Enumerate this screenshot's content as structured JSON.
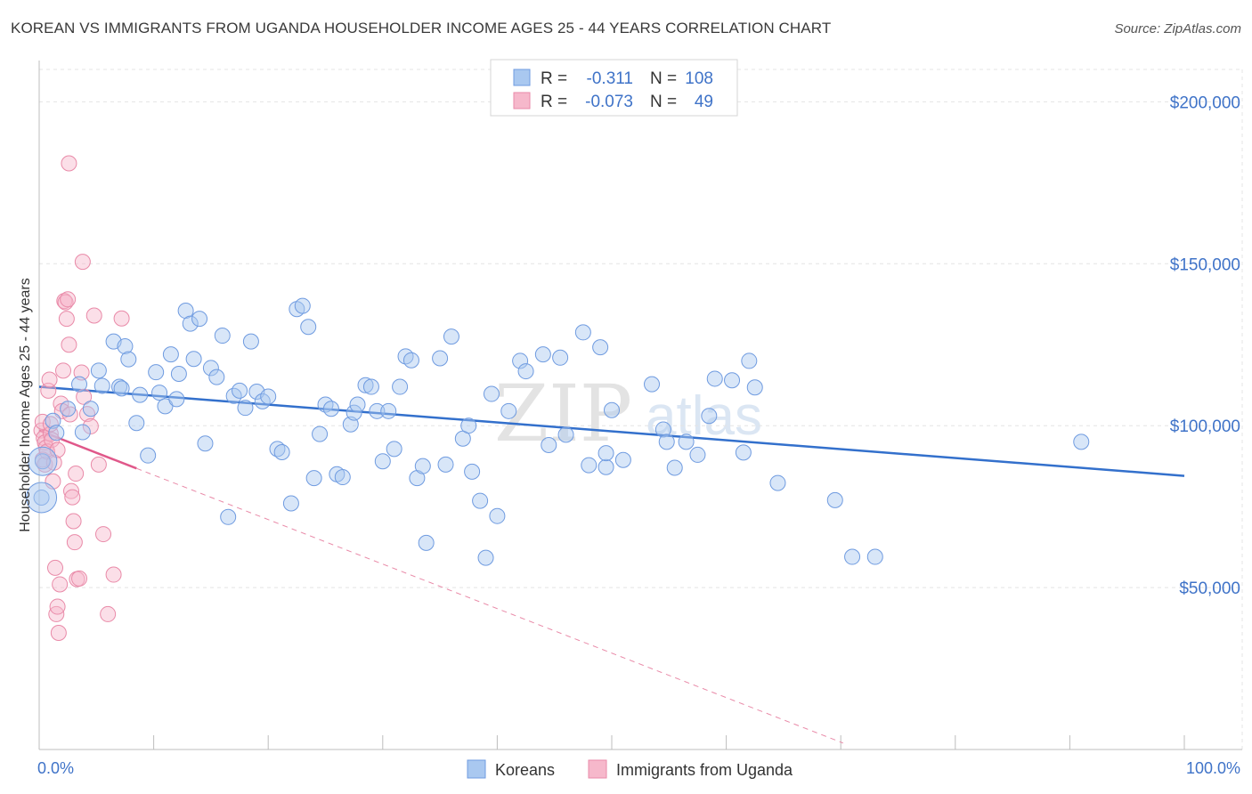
{
  "title": "KOREAN VS IMMIGRANTS FROM UGANDA HOUSEHOLDER INCOME AGES 25 - 44 YEARS CORRELATION CHART",
  "source": "Source: ZipAtlas.com",
  "watermark": {
    "zip": "ZIP",
    "atlas": "atlas"
  },
  "colors": {
    "korean_fill": "#a9c8f0",
    "korean_stroke": "#6f9be0",
    "korean_line": "#3370cc",
    "uganda_fill": "#f6b8cb",
    "uganda_stroke": "#e98aa8",
    "uganda_line": "#e0588a",
    "tick_text": "#3f73c8",
    "grid": "#e4e4e4"
  },
  "legend": {
    "rows": [
      {
        "r_label": "R =",
        "r_value": "-0.311",
        "n_label": "N =",
        "n_value": "108"
      },
      {
        "r_label": "R =",
        "r_value": "-0.073",
        "n_label": "N =",
        "n_value": "49"
      }
    ]
  },
  "chart_data": {
    "type": "scatter",
    "title": "KOREAN VS IMMIGRANTS FROM UGANDA HOUSEHOLDER INCOME AGES 25 - 44 YEARS CORRELATION CHART",
    "xlabel": "",
    "ylabel": "Householder Income Ages 25 - 44 years",
    "xlim": [
      0,
      100
    ],
    "ylim": [
      0,
      210000
    ],
    "x_tick_labels": [
      "0.0%",
      "100.0%"
    ],
    "y_ticks": [
      50000,
      100000,
      150000,
      200000
    ],
    "y_tick_labels": [
      "$50,000",
      "$100,000",
      "$150,000",
      "$200,000"
    ],
    "grid": true,
    "legend_position": "top-center",
    "series": [
      {
        "name": "Koreans",
        "r": -0.311,
        "n": 108,
        "trend": {
          "x0": 0,
          "y0": 112000,
          "x1": 100,
          "y1": 84500
        },
        "points": [
          [
            0.3,
            89000
          ],
          [
            0.2,
            77800
          ],
          [
            1.2,
            101500
          ],
          [
            1.5,
            97800
          ],
          [
            2.5,
            105200
          ],
          [
            3.5,
            112800
          ],
          [
            3.8,
            98000
          ],
          [
            4.5,
            105200
          ],
          [
            5.2,
            117000
          ],
          [
            5.5,
            112300
          ],
          [
            6.5,
            126000
          ],
          [
            7.0,
            112000
          ],
          [
            7.2,
            111500
          ],
          [
            7.5,
            124500
          ],
          [
            7.8,
            120500
          ],
          [
            8.5,
            100800
          ],
          [
            8.8,
            109500
          ],
          [
            9.5,
            90800
          ],
          [
            10.2,
            116500
          ],
          [
            10.5,
            110200
          ],
          [
            11.0,
            106000
          ],
          [
            11.5,
            122000
          ],
          [
            12.0,
            108200
          ],
          [
            12.2,
            116000
          ],
          [
            12.8,
            135500
          ],
          [
            13.2,
            131500
          ],
          [
            13.5,
            120600
          ],
          [
            14.0,
            133000
          ],
          [
            14.5,
            94500
          ],
          [
            15.0,
            117800
          ],
          [
            15.5,
            115000
          ],
          [
            16.0,
            127800
          ],
          [
            16.5,
            71800
          ],
          [
            17.0,
            109200
          ],
          [
            17.5,
            110800
          ],
          [
            18.0,
            105500
          ],
          [
            18.5,
            126000
          ],
          [
            19.0,
            110500
          ],
          [
            19.5,
            107500
          ],
          [
            20.0,
            109000
          ],
          [
            20.8,
            92800
          ],
          [
            21.2,
            91800
          ],
          [
            22.0,
            76000
          ],
          [
            22.5,
            136000
          ],
          [
            23.0,
            137000
          ],
          [
            23.5,
            130500
          ],
          [
            24.0,
            83800
          ],
          [
            24.5,
            97400
          ],
          [
            25.0,
            106500
          ],
          [
            25.5,
            105200
          ],
          [
            26.0,
            85000
          ],
          [
            26.5,
            84100
          ],
          [
            27.2,
            100400
          ],
          [
            27.5,
            104000
          ],
          [
            27.8,
            106500
          ],
          [
            28.5,
            112500
          ],
          [
            29.0,
            112000
          ],
          [
            29.5,
            104500
          ],
          [
            30.0,
            89000
          ],
          [
            30.5,
            104500
          ],
          [
            31.0,
            92800
          ],
          [
            31.5,
            112000
          ],
          [
            32.0,
            121400
          ],
          [
            32.5,
            120200
          ],
          [
            33.0,
            83800
          ],
          [
            33.5,
            87500
          ],
          [
            33.8,
            63800
          ],
          [
            35.0,
            120800
          ],
          [
            35.5,
            88000
          ],
          [
            36.0,
            127500
          ],
          [
            37.0,
            96000
          ],
          [
            37.5,
            100000
          ],
          [
            37.8,
            85800
          ],
          [
            38.5,
            76800
          ],
          [
            39.0,
            59200
          ],
          [
            39.5,
            109800
          ],
          [
            40.0,
            72100
          ],
          [
            41.0,
            104500
          ],
          [
            42.0,
            120000
          ],
          [
            42.5,
            116800
          ],
          [
            44.0,
            122000
          ],
          [
            44.5,
            94000
          ],
          [
            45.5,
            121000
          ],
          [
            46.0,
            97200
          ],
          [
            47.5,
            128800
          ],
          [
            48.0,
            87800
          ],
          [
            49.0,
            124200
          ],
          [
            49.5,
            87200
          ],
          [
            50.0,
            104800
          ],
          [
            51.0,
            89400
          ],
          [
            53.5,
            112800
          ],
          [
            54.5,
            98800
          ],
          [
            54.8,
            95000
          ],
          [
            55.5,
            87000
          ],
          [
            56.5,
            95000
          ],
          [
            57.5,
            91000
          ],
          [
            58.5,
            103000
          ],
          [
            59.0,
            114500
          ],
          [
            60.5,
            114000
          ],
          [
            61.5,
            91700
          ],
          [
            62.0,
            120000
          ],
          [
            62.5,
            111800
          ],
          [
            64.5,
            82300
          ],
          [
            69.5,
            77000
          ],
          [
            71.0,
            59500
          ],
          [
            73.0,
            59500
          ],
          [
            91.0,
            95000
          ],
          [
            49.5,
            91500
          ]
        ]
      },
      {
        "name": "Immigrants from Uganda",
        "r": -0.073,
        "n": 49,
        "trend": {
          "x0": 0,
          "y0": 98500,
          "x1": 8.5,
          "y1": 86800
        },
        "trend_extension": {
          "x0": 8.5,
          "y0": 86800,
          "x1": 70.2,
          "y1": 2000
        },
        "points": [
          [
            0.2,
            98500
          ],
          [
            0.3,
            101200
          ],
          [
            0.4,
            96200
          ],
          [
            0.5,
            94800
          ],
          [
            0.6,
            93200
          ],
          [
            0.3,
            89500
          ],
          [
            0.5,
            88000
          ],
          [
            0.7,
            92000
          ],
          [
            0.8,
            110800
          ],
          [
            0.9,
            114200
          ],
          [
            1.0,
            97500
          ],
          [
            1.1,
            95600
          ],
          [
            1.2,
            82800
          ],
          [
            1.3,
            88600
          ],
          [
            1.4,
            56100
          ],
          [
            1.5,
            41800
          ],
          [
            1.6,
            44100
          ],
          [
            1.7,
            36000
          ],
          [
            1.8,
            51000
          ],
          [
            1.9,
            106800
          ],
          [
            2.0,
            104500
          ],
          [
            2.1,
            117000
          ],
          [
            2.2,
            138500
          ],
          [
            2.3,
            138100
          ],
          [
            2.4,
            133000
          ],
          [
            2.5,
            139000
          ],
          [
            2.6,
            125000
          ],
          [
            2.7,
            103500
          ],
          [
            2.8,
            79800
          ],
          [
            2.9,
            77900
          ],
          [
            3.0,
            70500
          ],
          [
            3.1,
            64000
          ],
          [
            3.2,
            85200
          ],
          [
            3.3,
            52600
          ],
          [
            3.5,
            52800
          ],
          [
            3.7,
            116400
          ],
          [
            3.9,
            108900
          ],
          [
            4.2,
            103600
          ],
          [
            4.5,
            99800
          ],
          [
            2.6,
            181000
          ],
          [
            3.8,
            150600
          ],
          [
            4.8,
            134000
          ],
          [
            5.2,
            88000
          ],
          [
            5.6,
            66500
          ],
          [
            6.0,
            41800
          ],
          [
            6.5,
            54000
          ],
          [
            7.2,
            133100
          ],
          [
            1.0,
            100500
          ],
          [
            1.6,
            92500
          ]
        ]
      }
    ]
  }
}
